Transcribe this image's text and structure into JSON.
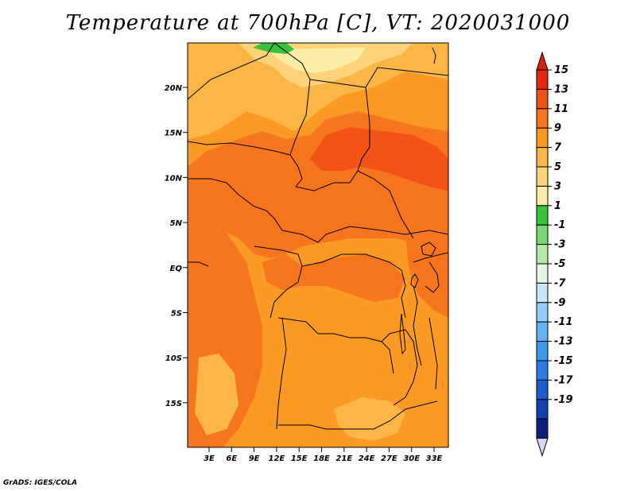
{
  "title": "Temperature at 700hPa [C], VT: 2020031000",
  "credit": "GrADS: IGES/COLA",
  "lat_ticks": [
    "20N",
    "15N",
    "10N",
    "5N",
    "EQ",
    "5S",
    "10S",
    "15S"
  ],
  "lon_ticks": [
    "3E",
    "6E",
    "9E",
    "12E",
    "15E",
    "18E",
    "21E",
    "24E",
    "27E",
    "30E",
    "33E"
  ],
  "colorbar": {
    "labels": [
      "15",
      "13",
      "11",
      "9",
      "7",
      "5",
      "3",
      "1",
      "-1",
      "-3",
      "-5",
      "-7",
      "-9",
      "-11",
      "-13",
      "-15",
      "-17",
      "-19"
    ],
    "colors": [
      "#e8280e",
      "#f25216",
      "#f7751c",
      "#fa9a22",
      "#fbb646",
      "#fdd278",
      "#fdeca6",
      "#38c33a",
      "#78d872",
      "#b4eaa8",
      "#e4f7e0",
      "#c9e7fc",
      "#93cdfa",
      "#64b2f5",
      "#3e98ec",
      "#2a7be2",
      "#1d5ccf",
      "#1140b0",
      "#0a1f80"
    ],
    "top_arrow_color": "#d9200a",
    "bottom_arrow_color": "#d8d8f2"
  }
}
